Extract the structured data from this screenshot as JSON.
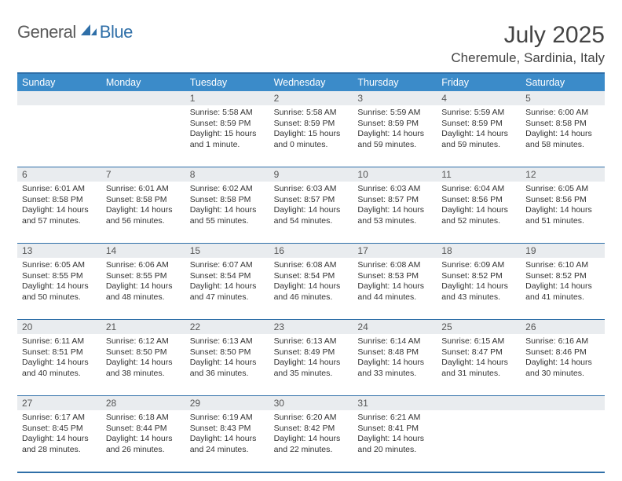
{
  "logo": {
    "general": "General",
    "blue": "Blue",
    "shape_color": "#2f6fa8"
  },
  "title": {
    "month": "July 2025",
    "location": "Cheremule, Sardinia, Italy"
  },
  "style": {
    "header_bg": "#3b8bc9",
    "border_color": "#2f6fa8",
    "daynum_bg": "#e9ecef",
    "text_color": "#333333",
    "font_daynames": 12.5,
    "font_daynum": 12,
    "font_cell": 10.5
  },
  "day_names": [
    "Sunday",
    "Monday",
    "Tuesday",
    "Wednesday",
    "Thursday",
    "Friday",
    "Saturday"
  ],
  "weeks": [
    [
      {
        "n": "",
        "sunrise": "",
        "sunset": "",
        "daylight": ""
      },
      {
        "n": "",
        "sunrise": "",
        "sunset": "",
        "daylight": ""
      },
      {
        "n": "1",
        "sunrise": "Sunrise: 5:58 AM",
        "sunset": "Sunset: 8:59 PM",
        "daylight": "Daylight: 15 hours and 1 minute."
      },
      {
        "n": "2",
        "sunrise": "Sunrise: 5:58 AM",
        "sunset": "Sunset: 8:59 PM",
        "daylight": "Daylight: 15 hours and 0 minutes."
      },
      {
        "n": "3",
        "sunrise": "Sunrise: 5:59 AM",
        "sunset": "Sunset: 8:59 PM",
        "daylight": "Daylight: 14 hours and 59 minutes."
      },
      {
        "n": "4",
        "sunrise": "Sunrise: 5:59 AM",
        "sunset": "Sunset: 8:59 PM",
        "daylight": "Daylight: 14 hours and 59 minutes."
      },
      {
        "n": "5",
        "sunrise": "Sunrise: 6:00 AM",
        "sunset": "Sunset: 8:58 PM",
        "daylight": "Daylight: 14 hours and 58 minutes."
      }
    ],
    [
      {
        "n": "6",
        "sunrise": "Sunrise: 6:01 AM",
        "sunset": "Sunset: 8:58 PM",
        "daylight": "Daylight: 14 hours and 57 minutes."
      },
      {
        "n": "7",
        "sunrise": "Sunrise: 6:01 AM",
        "sunset": "Sunset: 8:58 PM",
        "daylight": "Daylight: 14 hours and 56 minutes."
      },
      {
        "n": "8",
        "sunrise": "Sunrise: 6:02 AM",
        "sunset": "Sunset: 8:58 PM",
        "daylight": "Daylight: 14 hours and 55 minutes."
      },
      {
        "n": "9",
        "sunrise": "Sunrise: 6:03 AM",
        "sunset": "Sunset: 8:57 PM",
        "daylight": "Daylight: 14 hours and 54 minutes."
      },
      {
        "n": "10",
        "sunrise": "Sunrise: 6:03 AM",
        "sunset": "Sunset: 8:57 PM",
        "daylight": "Daylight: 14 hours and 53 minutes."
      },
      {
        "n": "11",
        "sunrise": "Sunrise: 6:04 AM",
        "sunset": "Sunset: 8:56 PM",
        "daylight": "Daylight: 14 hours and 52 minutes."
      },
      {
        "n": "12",
        "sunrise": "Sunrise: 6:05 AM",
        "sunset": "Sunset: 8:56 PM",
        "daylight": "Daylight: 14 hours and 51 minutes."
      }
    ],
    [
      {
        "n": "13",
        "sunrise": "Sunrise: 6:05 AM",
        "sunset": "Sunset: 8:55 PM",
        "daylight": "Daylight: 14 hours and 50 minutes."
      },
      {
        "n": "14",
        "sunrise": "Sunrise: 6:06 AM",
        "sunset": "Sunset: 8:55 PM",
        "daylight": "Daylight: 14 hours and 48 minutes."
      },
      {
        "n": "15",
        "sunrise": "Sunrise: 6:07 AM",
        "sunset": "Sunset: 8:54 PM",
        "daylight": "Daylight: 14 hours and 47 minutes."
      },
      {
        "n": "16",
        "sunrise": "Sunrise: 6:08 AM",
        "sunset": "Sunset: 8:54 PM",
        "daylight": "Daylight: 14 hours and 46 minutes."
      },
      {
        "n": "17",
        "sunrise": "Sunrise: 6:08 AM",
        "sunset": "Sunset: 8:53 PM",
        "daylight": "Daylight: 14 hours and 44 minutes."
      },
      {
        "n": "18",
        "sunrise": "Sunrise: 6:09 AM",
        "sunset": "Sunset: 8:52 PM",
        "daylight": "Daylight: 14 hours and 43 minutes."
      },
      {
        "n": "19",
        "sunrise": "Sunrise: 6:10 AM",
        "sunset": "Sunset: 8:52 PM",
        "daylight": "Daylight: 14 hours and 41 minutes."
      }
    ],
    [
      {
        "n": "20",
        "sunrise": "Sunrise: 6:11 AM",
        "sunset": "Sunset: 8:51 PM",
        "daylight": "Daylight: 14 hours and 40 minutes."
      },
      {
        "n": "21",
        "sunrise": "Sunrise: 6:12 AM",
        "sunset": "Sunset: 8:50 PM",
        "daylight": "Daylight: 14 hours and 38 minutes."
      },
      {
        "n": "22",
        "sunrise": "Sunrise: 6:13 AM",
        "sunset": "Sunset: 8:50 PM",
        "daylight": "Daylight: 14 hours and 36 minutes."
      },
      {
        "n": "23",
        "sunrise": "Sunrise: 6:13 AM",
        "sunset": "Sunset: 8:49 PM",
        "daylight": "Daylight: 14 hours and 35 minutes."
      },
      {
        "n": "24",
        "sunrise": "Sunrise: 6:14 AM",
        "sunset": "Sunset: 8:48 PM",
        "daylight": "Daylight: 14 hours and 33 minutes."
      },
      {
        "n": "25",
        "sunrise": "Sunrise: 6:15 AM",
        "sunset": "Sunset: 8:47 PM",
        "daylight": "Daylight: 14 hours and 31 minutes."
      },
      {
        "n": "26",
        "sunrise": "Sunrise: 6:16 AM",
        "sunset": "Sunset: 8:46 PM",
        "daylight": "Daylight: 14 hours and 30 minutes."
      }
    ],
    [
      {
        "n": "27",
        "sunrise": "Sunrise: 6:17 AM",
        "sunset": "Sunset: 8:45 PM",
        "daylight": "Daylight: 14 hours and 28 minutes."
      },
      {
        "n": "28",
        "sunrise": "Sunrise: 6:18 AM",
        "sunset": "Sunset: 8:44 PM",
        "daylight": "Daylight: 14 hours and 26 minutes."
      },
      {
        "n": "29",
        "sunrise": "Sunrise: 6:19 AM",
        "sunset": "Sunset: 8:43 PM",
        "daylight": "Daylight: 14 hours and 24 minutes."
      },
      {
        "n": "30",
        "sunrise": "Sunrise: 6:20 AM",
        "sunset": "Sunset: 8:42 PM",
        "daylight": "Daylight: 14 hours and 22 minutes."
      },
      {
        "n": "31",
        "sunrise": "Sunrise: 6:21 AM",
        "sunset": "Sunset: 8:41 PM",
        "daylight": "Daylight: 14 hours and 20 minutes."
      },
      {
        "n": "",
        "sunrise": "",
        "sunset": "",
        "daylight": ""
      },
      {
        "n": "",
        "sunrise": "",
        "sunset": "",
        "daylight": ""
      }
    ]
  ]
}
